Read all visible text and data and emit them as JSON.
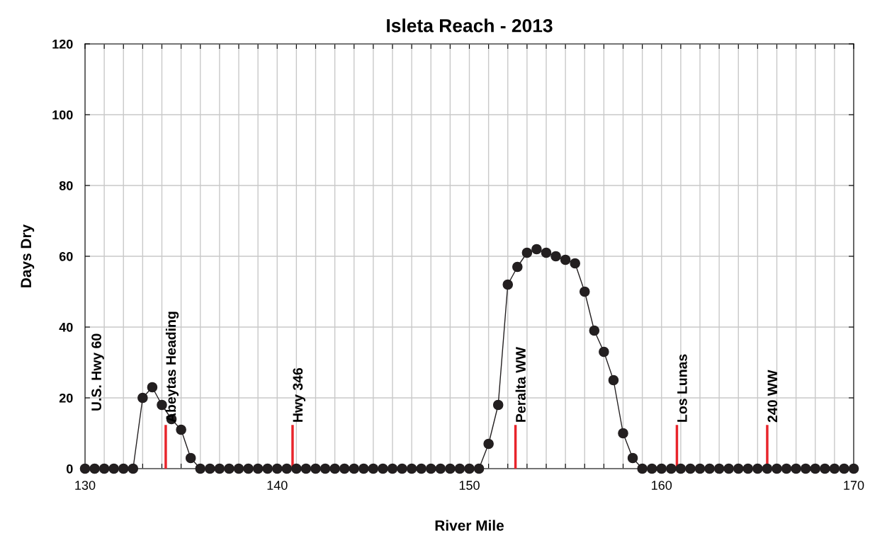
{
  "chart_data": {
    "type": "line",
    "title": "Isleta Reach - 2013",
    "xlabel": "River Mile",
    "ylabel": "Days Dry",
    "x": [
      130,
      130.5,
      131,
      131.5,
      132,
      132.5,
      133,
      133.5,
      134,
      134.5,
      135,
      135.5,
      136,
      136.5,
      137,
      137.5,
      138,
      138.5,
      139,
      139.5,
      140,
      140.5,
      141,
      141.5,
      142,
      142.5,
      143,
      143.5,
      144,
      144.5,
      145,
      145.5,
      146,
      146.5,
      147,
      147.5,
      148,
      148.5,
      149,
      149.5,
      150,
      150.5,
      151,
      151.5,
      152,
      152.5,
      153,
      153.5,
      154,
      154.5,
      155,
      155.5,
      156,
      156.5,
      157,
      157.5,
      158,
      158.5,
      159,
      159.5,
      160,
      160.5,
      161,
      161.5,
      162,
      162.5,
      163,
      163.5,
      164,
      164.5,
      165,
      165.5,
      166,
      166.5,
      167,
      167.5,
      168,
      168.5,
      169,
      169.5,
      170
    ],
    "series": [
      {
        "color": "#231f20",
        "values": [
          0,
          0,
          0,
          0,
          0,
          0,
          20,
          23,
          18,
          14,
          11,
          3,
          0,
          0,
          0,
          0,
          0,
          0,
          0,
          0,
          0,
          0,
          0,
          0,
          0,
          0,
          0,
          0,
          0,
          0,
          0,
          0,
          0,
          0,
          0,
          0,
          0,
          0,
          0,
          0,
          0,
          0,
          7,
          18,
          52,
          57,
          61,
          62,
          61,
          60,
          59,
          58,
          50,
          39,
          33,
          25,
          10,
          3,
          0,
          0,
          0,
          0,
          0,
          0,
          0,
          0,
          0,
          0,
          0,
          0,
          0,
          0,
          0,
          0,
          0,
          0,
          0,
          0,
          0,
          0,
          0
        ]
      }
    ],
    "marker": "circle",
    "line_style": "solid",
    "grid": true,
    "xlim": [
      130,
      170
    ],
    "ylim": [
      0,
      120
    ],
    "xticks": [
      130,
      {
        "value": 131,
        "label": null
      },
      {
        "value": 132,
        "label": null
      },
      {
        "value": 133,
        "label": null
      },
      {
        "value": 134,
        "label": null
      },
      {
        "value": 135,
        "label": null
      },
      {
        "value": 136,
        "label": null
      },
      {
        "value": 137,
        "label": null
      },
      {
        "value": 138,
        "label": null
      },
      {
        "value": 139,
        "label": null
      },
      140,
      {
        "value": 141,
        "label": null
      },
      {
        "value": 142,
        "label": null
      },
      {
        "value": 143,
        "label": null
      },
      {
        "value": 144,
        "label": null
      },
      {
        "value": 145,
        "label": null
      },
      {
        "value": 146,
        "label": null
      },
      {
        "value": 147,
        "label": null
      },
      {
        "value": 148,
        "label": null
      },
      {
        "value": 149,
        "label": null
      },
      150,
      {
        "value": 151,
        "label": null
      },
      {
        "value": 152,
        "label": null
      },
      {
        "value": 153,
        "label": null
      },
      {
        "value": 154,
        "label": null
      },
      {
        "value": 155,
        "label": null
      },
      {
        "value": 156,
        "label": null
      },
      {
        "value": 157,
        "label": null
      },
      {
        "value": 158,
        "label": null
      },
      {
        "value": 159,
        "label": null
      },
      160,
      {
        "value": 161,
        "label": null
      },
      {
        "value": 162,
        "label": null
      },
      {
        "value": 163,
        "label": null
      },
      {
        "value": 164,
        "label": null
      },
      {
        "value": 165,
        "label": null
      },
      {
        "value": 166,
        "label": null
      },
      {
        "value": 167,
        "label": null
      },
      {
        "value": 168,
        "label": null
      },
      {
        "value": 169,
        "label": null
      },
      170
    ],
    "yticks": [
      0,
      20,
      40,
      60,
      80,
      100,
      120
    ],
    "ref_lines": [
      {
        "axis": "x",
        "value": 134.2,
        "label": "Abeytas Heading",
        "color": "#e8242b"
      },
      {
        "axis": "x",
        "value": 140.8,
        "label": "Hwy 346",
        "color": "#e8242b"
      },
      {
        "axis": "x",
        "value": 152.4,
        "label": "Peralta WW",
        "color": "#e8242b"
      },
      {
        "axis": "x",
        "value": 160.8,
        "label": "Los Lunas",
        "color": "#e8242b"
      },
      {
        "axis": "x",
        "value": 165.5,
        "label": "240 WW",
        "color": "#e8242b"
      }
    ],
    "annotations": [
      "U.S. Hwy 60"
    ]
  }
}
